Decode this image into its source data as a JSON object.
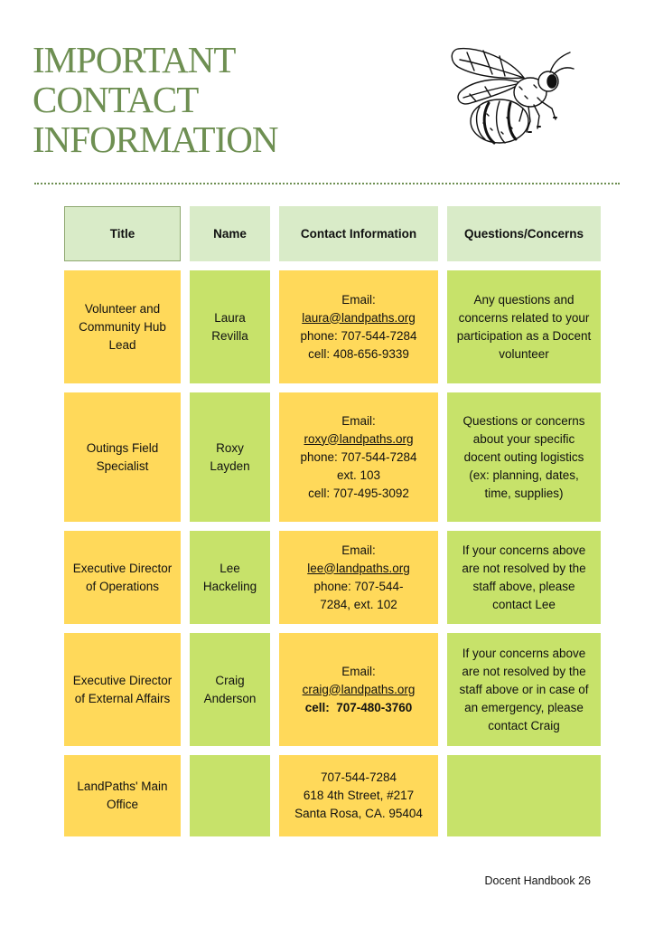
{
  "page": {
    "title_lines": [
      "IMPORTANT",
      "CONTACT",
      "INFORMATION"
    ],
    "footer_label": "Docent Handbook",
    "page_number": "26"
  },
  "table": {
    "headers": [
      "Title",
      "Name",
      "Contact Information",
      "Questions/Concerns"
    ],
    "rows": [
      {
        "title": "Volunteer and Community Hub Lead",
        "name": "Laura Revilla",
        "contact": {
          "email_label": "Email:",
          "email": "laura@landpaths.org",
          "phone": "phone: 707-544-7284",
          "ext": "",
          "cell": "cell: 408-656-9339"
        },
        "concerns": "Any questions and concerns related to your participation as a Docent volunteer"
      },
      {
        "title": "Outings Field Specialist",
        "name": "Roxy Layden",
        "contact": {
          "email_label": "Email:",
          "email": "roxy@landpaths.org",
          "phone": "phone: 707-544-7284",
          "ext": "ext. 103",
          "cell": "cell: 707-495-3092"
        },
        "concerns": "Questions or concerns about your specific docent outing logistics (ex: planning, dates, time, supplies)"
      },
      {
        "title": "Executive Director of Operations",
        "name": "Lee Hackeling",
        "contact": {
          "email_label": "Email:",
          "email": "lee@landpaths.org",
          "phone": "phone: 707-544-7284, ext. 102",
          "ext": "",
          "cell": ""
        },
        "concerns": "If your concerns above are not resolved by the staff above, please contact Lee"
      },
      {
        "title": "Executive Director of External Affairs",
        "name": "Craig Anderson",
        "contact": {
          "email_label": "Email:",
          "email": "craig@landpaths.org",
          "phone": "",
          "ext": "",
          "cell": "cell:  707-480-3760"
        },
        "concerns": "If your concerns above are not resolved by the staff above or in case of an emergency, please contact Craig"
      },
      {
        "title": "LandPaths' Main Office",
        "name": "",
        "contact": {
          "line1": "707-544-7284",
          "line2": "618 4th Street, #217",
          "line3": "Santa Rosa, CA. 95404"
        },
        "concerns": ""
      }
    ]
  },
  "colors": {
    "title_green": "#6e8f52",
    "header_fill": "#d9ebc8",
    "yellow_fill": "#ffd95a",
    "green_fill": "#c7e26a"
  },
  "icons": {
    "illustration": "bee-illustration"
  }
}
